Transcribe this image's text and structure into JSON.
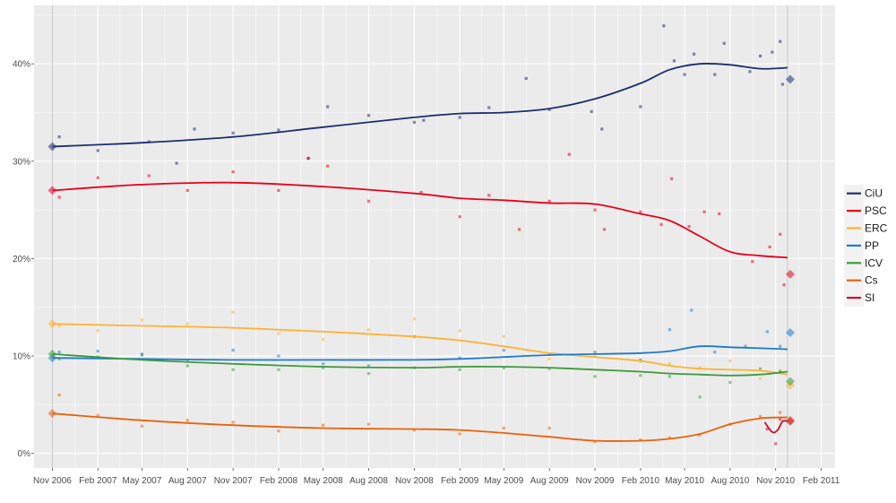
{
  "chart_data": {
    "type": "line",
    "title": "",
    "xlabel": "",
    "ylabel": "",
    "x_ticks": [
      "Nov 2006",
      "Feb 2007",
      "May 2007",
      "Aug 2007",
      "Nov 2007",
      "Feb 2008",
      "May 2008",
      "Aug 2008",
      "Nov 2008",
      "Feb 2009",
      "May 2009",
      "Aug 2009",
      "Nov 2009",
      "Feb 2010",
      "May 2010",
      "Aug 2010",
      "Nov 2010",
      "Feb 2011"
    ],
    "xlim": [
      "2006-09-25",
      "2011-03-01"
    ],
    "y_ticks": [
      "0%",
      "10%",
      "20%",
      "30%",
      "40%"
    ],
    "ylim": [
      -1.5,
      46
    ],
    "grid": true,
    "background": "#ebebeb",
    "legend_position": "right",
    "series": [
      {
        "name": "CiU",
        "color": "#1b2e6e",
        "x": [
          "2006-11-01",
          "2007-05-01",
          "2007-11-01",
          "2008-05-01",
          "2008-11-01",
          "2009-02-01",
          "2009-05-01",
          "2009-08-01",
          "2009-11-01",
          "2010-02-01",
          "2010-04-01",
          "2010-06-01",
          "2010-08-01",
          "2010-10-01",
          "2010-11-25"
        ],
        "y": [
          31.5,
          31.9,
          32.5,
          33.5,
          34.5,
          34.9,
          35.0,
          35.4,
          36.4,
          38.0,
          39.4,
          40.0,
          39.9,
          39.5,
          39.6
        ],
        "result": 38.4,
        "polls": [
          [
            "2006-11-15",
            32.5
          ],
          [
            "2007-02-01",
            31.1
          ],
          [
            "2007-05-15",
            32.0
          ],
          [
            "2007-07-10",
            29.8
          ],
          [
            "2007-08-15",
            33.3
          ],
          [
            "2007-11-01",
            32.9
          ],
          [
            "2008-02-01",
            33.2
          ],
          [
            "2008-04-01",
            30.3
          ],
          [
            "2008-05-10",
            35.6
          ],
          [
            "2008-08-01",
            34.7
          ],
          [
            "2008-11-01",
            34.0
          ],
          [
            "2008-11-20",
            34.2
          ],
          [
            "2009-02-01",
            34.5
          ],
          [
            "2009-04-01",
            35.5
          ],
          [
            "2009-06-15",
            38.5
          ],
          [
            "2009-08-01",
            35.3
          ],
          [
            "2009-10-25",
            35.1
          ],
          [
            "2009-11-15",
            33.3
          ],
          [
            "2010-02-01",
            35.6
          ],
          [
            "2010-03-20",
            43.9
          ],
          [
            "2010-04-10",
            40.3
          ],
          [
            "2010-05-01",
            38.9
          ],
          [
            "2010-05-20",
            41.0
          ],
          [
            "2010-07-01",
            38.9
          ],
          [
            "2010-07-20",
            42.1
          ],
          [
            "2010-09-10",
            39.2
          ],
          [
            "2010-10-01",
            40.8
          ],
          [
            "2010-10-25",
            41.2
          ],
          [
            "2010-11-10",
            42.3
          ],
          [
            "2010-11-15",
            37.9
          ]
        ]
      },
      {
        "name": "PSC",
        "color": "#e8001c",
        "x": [
          "2006-11-01",
          "2007-05-01",
          "2007-11-01",
          "2008-05-01",
          "2008-11-01",
          "2009-02-01",
          "2009-05-01",
          "2009-08-01",
          "2009-11-01",
          "2010-02-01",
          "2010-04-01",
          "2010-06-01",
          "2010-08-01",
          "2010-10-01",
          "2010-11-25"
        ],
        "y": [
          27.0,
          27.6,
          27.8,
          27.4,
          26.7,
          26.2,
          26.0,
          25.7,
          25.6,
          24.6,
          23.9,
          22.3,
          20.7,
          20.3,
          20.1
        ],
        "result": 18.4,
        "polls": [
          [
            "2006-11-15",
            26.3
          ],
          [
            "2007-02-01",
            28.3
          ],
          [
            "2007-05-15",
            28.5
          ],
          [
            "2007-08-01",
            27.0
          ],
          [
            "2007-11-01",
            28.9
          ],
          [
            "2008-02-01",
            27.0
          ],
          [
            "2008-04-01",
            30.3
          ],
          [
            "2008-05-10",
            29.5
          ],
          [
            "2008-08-01",
            25.9
          ],
          [
            "2008-11-15",
            26.8
          ],
          [
            "2009-02-01",
            24.3
          ],
          [
            "2009-04-01",
            26.5
          ],
          [
            "2009-06-01",
            23.0
          ],
          [
            "2009-08-01",
            25.9
          ],
          [
            "2009-09-10",
            30.7
          ],
          [
            "2009-11-01",
            25.0
          ],
          [
            "2009-11-20",
            23.0
          ],
          [
            "2010-02-01",
            24.8
          ],
          [
            "2010-03-15",
            23.5
          ],
          [
            "2010-04-05",
            28.2
          ],
          [
            "2010-05-10",
            23.3
          ],
          [
            "2010-06-10",
            24.8
          ],
          [
            "2010-07-10",
            24.6
          ],
          [
            "2010-09-15",
            19.7
          ],
          [
            "2010-10-20",
            21.2
          ],
          [
            "2010-11-10",
            22.5
          ],
          [
            "2010-11-18",
            17.3
          ]
        ]
      },
      {
        "name": "ERC",
        "color": "#ffb232",
        "x": [
          "2006-11-01",
          "2007-05-01",
          "2007-11-01",
          "2008-05-01",
          "2008-11-01",
          "2009-02-01",
          "2009-05-01",
          "2009-08-01",
          "2009-11-01",
          "2010-02-01",
          "2010-04-01",
          "2010-06-01",
          "2010-08-01",
          "2010-10-01",
          "2010-11-25"
        ],
        "y": [
          13.3,
          13.1,
          12.9,
          12.5,
          12.0,
          11.6,
          11.0,
          10.3,
          9.9,
          9.5,
          9.0,
          8.7,
          8.6,
          8.5,
          8.1
        ],
        "result": 7.0,
        "polls": [
          [
            "2006-11-15",
            13.1
          ],
          [
            "2007-02-01",
            12.6
          ],
          [
            "2007-05-01",
            13.7
          ],
          [
            "2007-08-01",
            13.3
          ],
          [
            "2007-11-01",
            14.5
          ],
          [
            "2008-02-01",
            12.3
          ],
          [
            "2008-05-01",
            11.7
          ],
          [
            "2008-08-01",
            12.7
          ],
          [
            "2008-11-01",
            13.8
          ],
          [
            "2009-02-01",
            12.6
          ],
          [
            "2009-05-01",
            12.0
          ],
          [
            "2009-08-01",
            9.7
          ],
          [
            "2009-11-01",
            10.1
          ],
          [
            "2010-02-01",
            9.4
          ],
          [
            "2010-04-01",
            9.2
          ],
          [
            "2010-06-01",
            8.8
          ],
          [
            "2010-08-01",
            9.5
          ],
          [
            "2010-10-01",
            7.7
          ],
          [
            "2010-11-10",
            8.5
          ]
        ]
      },
      {
        "name": "PP",
        "color": "#1f7bc8",
        "x": [
          "2006-11-01",
          "2007-05-01",
          "2007-11-01",
          "2008-05-01",
          "2008-11-01",
          "2009-02-01",
          "2009-05-01",
          "2009-08-01",
          "2009-11-01",
          "2010-02-01",
          "2010-04-01",
          "2010-06-01",
          "2010-08-01",
          "2010-10-01",
          "2010-11-25"
        ],
        "y": [
          9.8,
          9.7,
          9.6,
          9.6,
          9.6,
          9.7,
          9.9,
          10.1,
          10.2,
          10.3,
          10.5,
          11.0,
          10.9,
          10.8,
          10.7
        ],
        "result": 12.4,
        "polls": [
          [
            "2006-11-15",
            10.4
          ],
          [
            "2007-02-01",
            10.5
          ],
          [
            "2007-05-01",
            10.2
          ],
          [
            "2007-08-01",
            9.5
          ],
          [
            "2007-11-01",
            10.6
          ],
          [
            "2008-02-01",
            10.0
          ],
          [
            "2008-05-01",
            9.2
          ],
          [
            "2008-08-01",
            9.0
          ],
          [
            "2008-11-01",
            12.0
          ],
          [
            "2009-02-01",
            9.8
          ],
          [
            "2009-05-01",
            10.6
          ],
          [
            "2009-08-01",
            10.2
          ],
          [
            "2009-11-01",
            10.4
          ],
          [
            "2010-02-01",
            9.6
          ],
          [
            "2010-04-01",
            12.7
          ],
          [
            "2010-05-15",
            14.7
          ],
          [
            "2010-07-01",
            10.4
          ],
          [
            "2010-09-01",
            11.0
          ],
          [
            "2010-10-15",
            12.5
          ],
          [
            "2010-11-10",
            11.0
          ]
        ]
      },
      {
        "name": "ICV",
        "color": "#3c9a3c",
        "x": [
          "2006-11-01",
          "2007-05-01",
          "2007-11-01",
          "2008-05-01",
          "2008-11-01",
          "2009-02-01",
          "2009-05-01",
          "2009-08-01",
          "2009-11-01",
          "2010-02-01",
          "2010-04-01",
          "2010-06-01",
          "2010-08-01",
          "2010-10-01",
          "2010-11-25"
        ],
        "y": [
          10.2,
          9.6,
          9.2,
          8.9,
          8.8,
          8.9,
          8.9,
          8.8,
          8.6,
          8.4,
          8.2,
          8.1,
          8.0,
          8.1,
          8.4
        ],
        "result": 7.4,
        "polls": [
          [
            "2006-11-15",
            9.7
          ],
          [
            "2007-02-01",
            9.9
          ],
          [
            "2007-05-01",
            10.1
          ],
          [
            "2007-08-01",
            9.0
          ],
          [
            "2007-11-01",
            8.6
          ],
          [
            "2008-02-01",
            8.6
          ],
          [
            "2008-05-01",
            8.8
          ],
          [
            "2008-08-01",
            8.2
          ],
          [
            "2008-11-01",
            8.8
          ],
          [
            "2009-02-01",
            8.6
          ],
          [
            "2009-05-01",
            8.8
          ],
          [
            "2009-08-01",
            8.7
          ],
          [
            "2009-11-01",
            7.9
          ],
          [
            "2010-02-01",
            8.0
          ],
          [
            "2010-04-01",
            7.9
          ],
          [
            "2010-06-01",
            5.8
          ],
          [
            "2010-08-01",
            7.3
          ],
          [
            "2010-10-01",
            8.7
          ],
          [
            "2010-11-10",
            8.4
          ]
        ]
      },
      {
        "name": "Cs",
        "color": "#eb6109",
        "x": [
          "2006-11-01",
          "2007-05-01",
          "2007-11-01",
          "2008-05-01",
          "2008-11-01",
          "2009-02-01",
          "2009-05-01",
          "2009-08-01",
          "2009-11-01",
          "2010-02-01",
          "2010-04-01",
          "2010-06-01",
          "2010-08-01",
          "2010-10-01",
          "2010-11-25"
        ],
        "y": [
          4.1,
          3.4,
          2.9,
          2.6,
          2.5,
          2.4,
          2.1,
          1.7,
          1.3,
          1.3,
          1.5,
          2.0,
          3.0,
          3.6,
          3.7
        ],
        "result": 3.4,
        "polls": [
          [
            "2006-11-15",
            6.0
          ],
          [
            "2007-02-01",
            3.9
          ],
          [
            "2007-05-01",
            2.8
          ],
          [
            "2007-08-01",
            3.4
          ],
          [
            "2007-11-01",
            3.2
          ],
          [
            "2008-02-01",
            2.3
          ],
          [
            "2008-05-01",
            2.9
          ],
          [
            "2008-08-01",
            3.0
          ],
          [
            "2008-11-01",
            2.4
          ],
          [
            "2009-02-01",
            2.0
          ],
          [
            "2009-05-01",
            2.6
          ],
          [
            "2009-08-01",
            2.6
          ],
          [
            "2009-11-01",
            1.2
          ],
          [
            "2010-02-01",
            1.4
          ],
          [
            "2010-04-01",
            1.6
          ],
          [
            "2010-06-01",
            1.9
          ],
          [
            "2010-08-01",
            3.0
          ],
          [
            "2010-10-01",
            3.8
          ],
          [
            "2010-11-10",
            4.2
          ]
        ]
      },
      {
        "name": "SI",
        "color": "#c8102e",
        "x": [
          "2010-10-10",
          "2010-10-25",
          "2010-11-05",
          "2010-11-15",
          "2010-11-25"
        ],
        "y": [
          3.2,
          2.2,
          2.4,
          3.3,
          3.3
        ],
        "result": 3.3,
        "polls": [
          [
            "2010-10-15",
            2.5
          ],
          [
            "2010-11-01",
            1.0
          ],
          [
            "2010-11-10",
            3.5
          ]
        ]
      }
    ]
  }
}
